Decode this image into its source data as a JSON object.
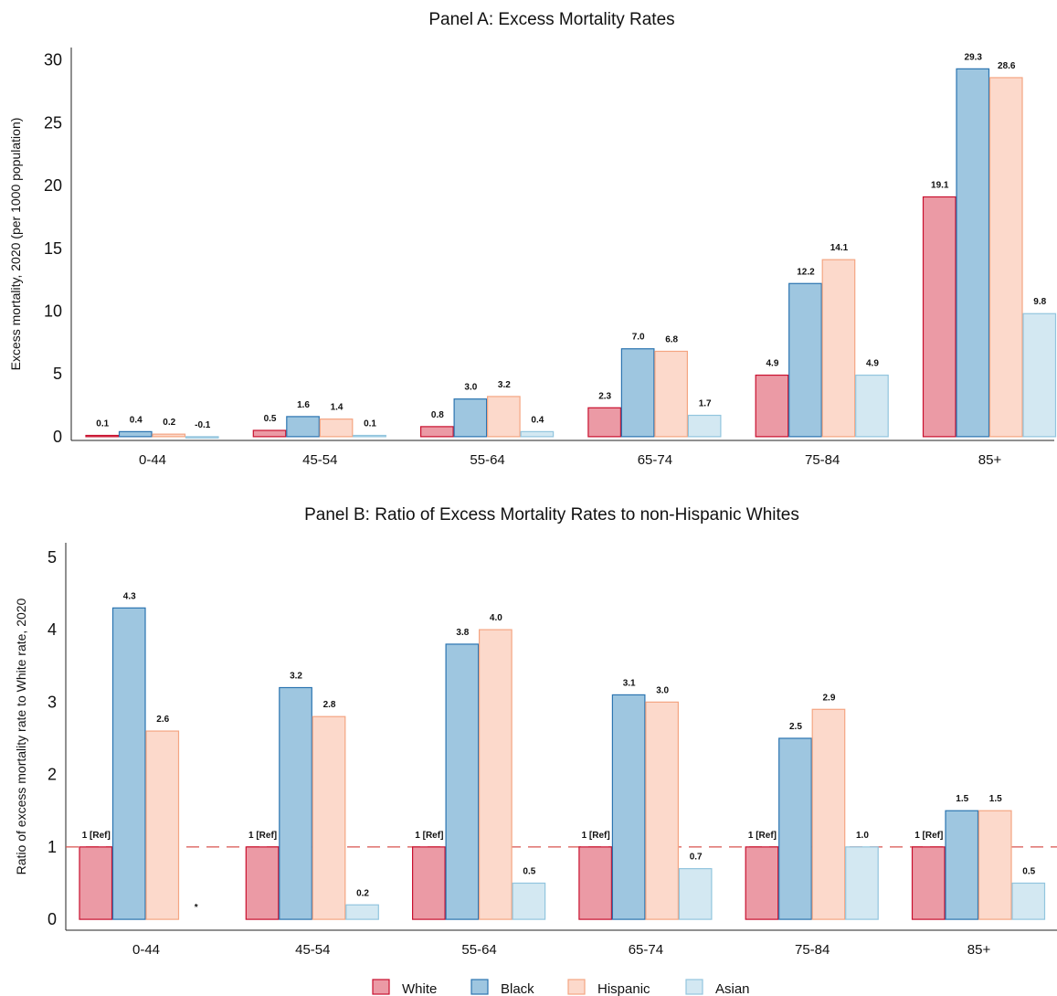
{
  "legend": [
    {
      "name": "White",
      "fill": "#eb9aa5",
      "stroke": "#c8102e"
    },
    {
      "name": "Black",
      "fill": "#9ec6e0",
      "stroke": "#2b74b0"
    },
    {
      "name": "Hispanic",
      "fill": "#fcd9cb",
      "stroke": "#f4a582"
    },
    {
      "name": "Asian",
      "fill": "#d3e8f2",
      "stroke": "#92c5de"
    }
  ],
  "chart_data": [
    {
      "type": "bar",
      "title": "Panel A: Excess Mortality Rates",
      "xlabel": "",
      "ylabel": "Excess mortality, 2020 (per 1000 population)",
      "ylim": [
        -0.3,
        31
      ],
      "yticks": [
        0,
        5,
        10,
        15,
        20,
        25,
        30
      ],
      "categories": [
        "0-44",
        "45-54",
        "55-64",
        "65-74",
        "75-84",
        "85+"
      ],
      "series": [
        {
          "name": "White",
          "values": [
            0.1,
            0.5,
            0.8,
            2.3,
            4.9,
            19.1
          ],
          "labels": [
            "0.1",
            "0.5",
            "0.8",
            "2.3",
            "4.9",
            "19.1"
          ]
        },
        {
          "name": "Black",
          "values": [
            0.4,
            1.6,
            3.0,
            7.0,
            12.2,
            29.3
          ],
          "labels": [
            "0.4",
            "1.6",
            "3.0",
            "7.0",
            "12.2",
            "29.3"
          ]
        },
        {
          "name": "Hispanic",
          "values": [
            0.2,
            1.4,
            3.2,
            6.8,
            14.1,
            28.6
          ],
          "labels": [
            "0.2",
            "1.4",
            "3.2",
            "6.8",
            "14.1",
            "28.6"
          ]
        },
        {
          "name": "Asian",
          "values": [
            -0.1,
            0.1,
            0.4,
            1.7,
            4.9,
            9.8
          ],
          "labels": [
            "-0.1",
            "0.1",
            "0.4",
            "1.7",
            "4.9",
            "9.8"
          ]
        }
      ]
    },
    {
      "type": "bar",
      "title": "Panel B: Ratio of Excess Mortality Rates to non-Hispanic Whites",
      "xlabel": "",
      "ylabel": "Ratio of excess mortality rate to White rate, 2020",
      "ylim": [
        -0.15,
        5.2
      ],
      "yticks": [
        0,
        1,
        2,
        3,
        4,
        5
      ],
      "reference_line": 1,
      "categories": [
        "0-44",
        "45-54",
        "55-64",
        "65-74",
        "75-84",
        "85+"
      ],
      "series": [
        {
          "name": "White",
          "values": [
            1,
            1,
            1,
            1,
            1,
            1
          ],
          "labels": [
            "1 [Ref]",
            "1 [Ref]",
            "1 [Ref]",
            "1 [Ref]",
            "1 [Ref]",
            "1 [Ref]"
          ]
        },
        {
          "name": "Black",
          "values": [
            4.3,
            3.2,
            3.8,
            3.1,
            2.5,
            1.5
          ],
          "labels": [
            "4.3",
            "3.2",
            "3.8",
            "3.1",
            "2.5",
            "1.5"
          ]
        },
        {
          "name": "Hispanic",
          "values": [
            2.6,
            2.8,
            4.0,
            3.0,
            2.9,
            1.5
          ],
          "labels": [
            "2.6",
            "2.8",
            "4.0",
            "3.0",
            "2.9",
            "1.5"
          ]
        },
        {
          "name": "Asian",
          "values": [
            null,
            0.2,
            0.5,
            0.7,
            1.0,
            0.5
          ],
          "labels": [
            "*",
            "0.2",
            "0.5",
            "0.7",
            "1.0",
            "0.5"
          ]
        }
      ]
    }
  ]
}
